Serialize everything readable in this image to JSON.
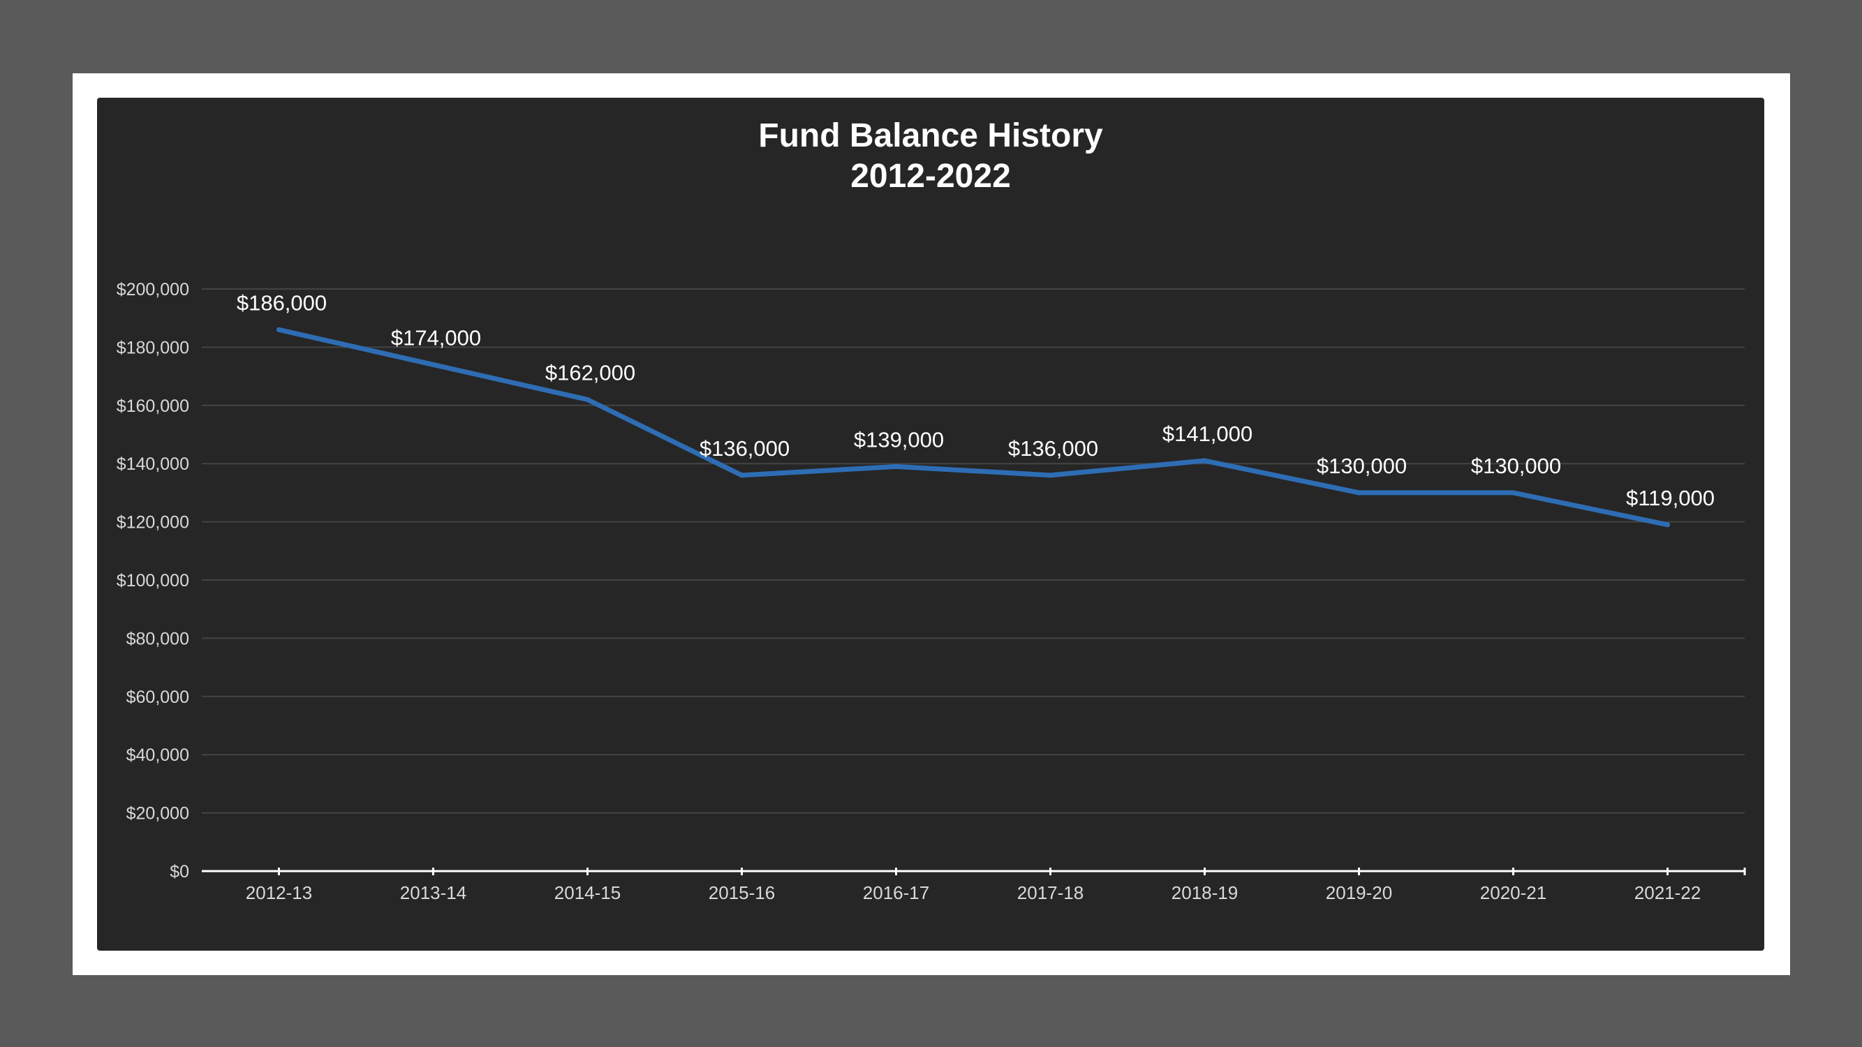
{
  "colors": {
    "background": "#5a5a5a",
    "page": "#ffffff",
    "plot_background": "#262626",
    "line": "#2e6db4",
    "gridline": "#444444",
    "text": "#ffffff",
    "tick_text": "#d9d9d9"
  },
  "chart_data": {
    "type": "line",
    "title": "Fund Balance History",
    "subtitle": "2012-2022",
    "xlabel": "",
    "ylabel": "",
    "categories": [
      "2012-13",
      "2013-14",
      "2014-15",
      "2015-16",
      "2016-17",
      "2017-18",
      "2018-19",
      "2019-20",
      "2020-21",
      "2021-22"
    ],
    "values": [
      186000,
      174000,
      162000,
      136000,
      139000,
      136000,
      141000,
      130000,
      130000,
      119000
    ],
    "data_labels": [
      "$186,000",
      "$174,000",
      "$162,000",
      "$136,000",
      "$139,000",
      "$136,000",
      "$141,000",
      "$130,000",
      "$130,000",
      "$119,000"
    ],
    "ylim": [
      0,
      200000
    ],
    "y_ticks": [
      0,
      20000,
      40000,
      60000,
      80000,
      100000,
      120000,
      140000,
      160000,
      180000,
      200000
    ],
    "y_tick_labels": [
      "$0",
      "$20,000",
      "$40,000",
      "$60,000",
      "$80,000",
      "$100,000",
      "$120,000",
      "$140,000",
      "$160,000",
      "$180,000",
      "$200,000"
    ],
    "grid": true,
    "legend": "none"
  }
}
